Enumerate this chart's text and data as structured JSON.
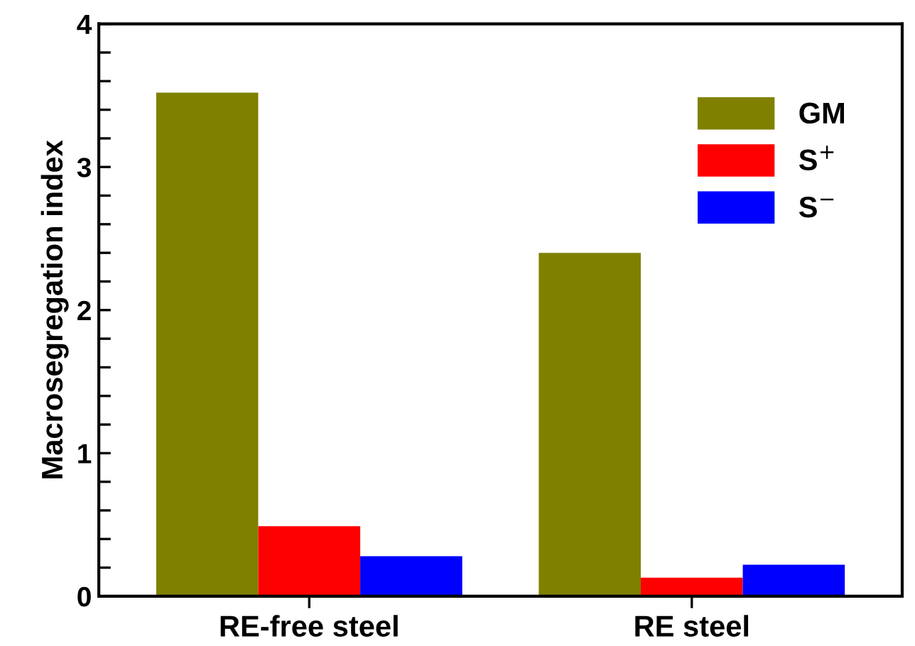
{
  "chart_data": {
    "type": "bar",
    "ylabel": "Macrosegregation index",
    "categories": [
      "RE-free steel",
      "RE steel"
    ],
    "series": [
      {
        "name": "GM",
        "color": "#808000",
        "values": [
          3.52,
          2.4
        ]
      },
      {
        "name": "S$^{+}$",
        "color": "#ff0000",
        "values": [
          0.49,
          0.13
        ]
      },
      {
        "name": "S$^{−}$",
        "color": "#0000ff",
        "values": [
          0.28,
          0.22
        ]
      }
    ],
    "ylim": [
      0,
      4
    ],
    "yticks": [
      0,
      {
        "value": 0.2,
        "label": null
      },
      {
        "value": 0.4,
        "label": null
      },
      {
        "value": 0.6,
        "label": null
      },
      {
        "value": 0.8,
        "label": null
      },
      1,
      {
        "value": 1.2,
        "label": null
      },
      {
        "value": 1.4,
        "label": null
      },
      {
        "value": 1.6,
        "label": null
      },
      {
        "value": 1.8,
        "label": null
      },
      2,
      {
        "value": 2.2,
        "label": null
      },
      {
        "value": 2.4,
        "label": null
      },
      {
        "value": 2.6,
        "label": null
      },
      {
        "value": 2.8,
        "label": null
      },
      3,
      {
        "value": 3.2,
        "label": null
      },
      {
        "value": 3.4,
        "label": null
      },
      {
        "value": 3.6,
        "label": null
      },
      {
        "value": 3.8,
        "label": null
      },
      4
    ],
    "grid": false,
    "legend": "top right"
  }
}
